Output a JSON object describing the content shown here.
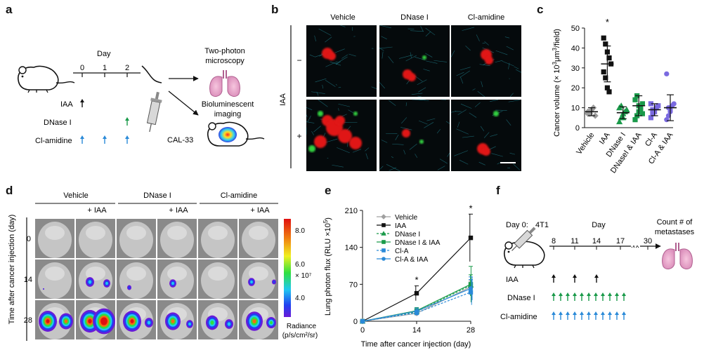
{
  "panels": {
    "a": {
      "letter": "a",
      "day_label": "Day",
      "day_ticks": [
        "0",
        "1",
        "2"
      ],
      "outputs": [
        "Two-photon",
        "microscopy",
        "Bioluminescent",
        "imaging"
      ],
      "treatments": [
        {
          "label": "IAA",
          "arrow_color": "#111111",
          "days": [
            0
          ]
        },
        {
          "label": "DNase I",
          "arrow_color": "#1a9a4a",
          "days": [
            2
          ]
        },
        {
          "label": "Cl-amidine",
          "arrow_color": "#2a8ad8",
          "days": [
            0,
            1,
            2
          ]
        }
      ],
      "cells": "CAL-33"
    },
    "b": {
      "letter": "b",
      "columns": [
        "Vehicle",
        "DNase I",
        "Cl-amidine"
      ],
      "row_title": "IAA",
      "rows": [
        "−",
        "+"
      ]
    },
    "c": {
      "letter": "c",
      "ylabel_pre": "Cancer volume (× 10",
      "ylabel_sup": "3",
      "ylabel_mid": "μm",
      "ylabel_sup2": "3",
      "ylabel_post": "/field)",
      "star": "*"
    },
    "d": {
      "letter": "d",
      "groups": [
        "Vehicle",
        "DNase I",
        "Cl-amidine"
      ],
      "sub": "+ IAA",
      "ylabel": "Time after cancer injection (day)",
      "days": [
        "0",
        "14",
        "28"
      ],
      "colorbar_ticks": [
        "8.0",
        "6.0",
        "4.0"
      ],
      "colorbar_unit": "× 10⁷",
      "radiance": "Radiance",
      "radiance_unit": "(p/s/cm²/sr)",
      "signal_colors": [
        "#6a1ad8",
        "#2040f0",
        "#20c8f0",
        "#30e040",
        "#f0f020",
        "#f07010",
        "#e01010"
      ]
    },
    "e": {
      "letter": "e",
      "ylabel_pre": "Lung photon flux (RLU ×10",
      "ylabel_sup": "5",
      "ylabel_post": ")",
      "xlabel": "Time after cancer injection (day)",
      "star": "*"
    },
    "f": {
      "letter": "f",
      "day0": "Day 0:",
      "cells": "4T1",
      "day_label": "Day",
      "day_ticks": [
        "8",
        "11",
        "14",
        "17",
        "30"
      ],
      "ellipsis": "....",
      "output": [
        "Count # of",
        "metastases"
      ],
      "treatments": [
        {
          "label": "IAA",
          "arrow_color": "#111111",
          "count": 3
        },
        {
          "label": "DNase I",
          "arrow_color": "#1a9a4a",
          "count": 11
        },
        {
          "label": "Cl-amidine",
          "arrow_color": "#2a8ad8",
          "count": 11
        }
      ]
    }
  },
  "chart_data": [
    {
      "panel": "c",
      "type": "scatter",
      "categories": [
        "Vehicle",
        "IAA",
        "DNase I",
        "DNaseI & IAA",
        "Cl-A",
        "Cl-A & IAA"
      ],
      "ylim": [
        0,
        50
      ],
      "yticks": [
        0,
        10,
        20,
        30,
        40,
        50
      ],
      "colors": [
        "#9a9a9a",
        "#111111",
        "#1a9a4a",
        "#1a9a4a",
        "#7a6ae0",
        "#7a6ae0"
      ],
      "markers": [
        "diamond",
        "square",
        "triangle",
        "square",
        "square",
        "circle"
      ],
      "points": [
        [
          7,
          8,
          9,
          10,
          6,
          8,
          7
        ],
        [
          45,
          42,
          38,
          35,
          32,
          28,
          25,
          20,
          18
        ],
        [
          3,
          5,
          7,
          8,
          9,
          10,
          11,
          5
        ],
        [
          4,
          6,
          8,
          10,
          12,
          14,
          16,
          11,
          9,
          7
        ],
        [
          5,
          7,
          8,
          10,
          11,
          12,
          9
        ],
        [
          4,
          6,
          9,
          11,
          12,
          27,
          10,
          8
        ]
      ],
      "mean": [
        8,
        32,
        7.5,
        11,
        9,
        10
      ],
      "sd": [
        2,
        9,
        3,
        5,
        3,
        6.5
      ],
      "significant": [
        false,
        true,
        false,
        false,
        false,
        false
      ]
    },
    {
      "panel": "e",
      "type": "line",
      "x": [
        0,
        14,
        28
      ],
      "xlim": [
        0,
        28
      ],
      "ylim": [
        0,
        210
      ],
      "yticks": [
        0,
        70,
        140,
        210
      ],
      "series": [
        {
          "name": "Vehicle",
          "values": [
            0,
            15,
            65
          ],
          "sd": [
            0,
            4,
            14
          ],
          "color": "#a0a0a0",
          "marker": "diamond",
          "dash": false
        },
        {
          "name": "IAA",
          "values": [
            0,
            53,
            158
          ],
          "sd": [
            0,
            14,
            45
          ],
          "color": "#111111",
          "marker": "square",
          "dash": false
        },
        {
          "name": "DNase I",
          "values": [
            0,
            18,
            68
          ],
          "sd": [
            0,
            5,
            20
          ],
          "color": "#1a9a4a",
          "marker": "triangle",
          "dash": true
        },
        {
          "name": "DNase I & IAA",
          "values": [
            0,
            20,
            70
          ],
          "sd": [
            0,
            6,
            34
          ],
          "color": "#1a9a4a",
          "marker": "square",
          "dash": false
        },
        {
          "name": "Cl-A",
          "values": [
            0,
            16,
            55
          ],
          "sd": [
            0,
            5,
            24
          ],
          "color": "#2a8ad8",
          "marker": "square",
          "dash": true
        },
        {
          "name": "Cl-A & IAA",
          "values": [
            0,
            19,
            62
          ],
          "sd": [
            0,
            6,
            22
          ],
          "color": "#2a8ad8",
          "marker": "circle",
          "dash": false
        }
      ],
      "significant_x": [
        14,
        28
      ]
    }
  ]
}
